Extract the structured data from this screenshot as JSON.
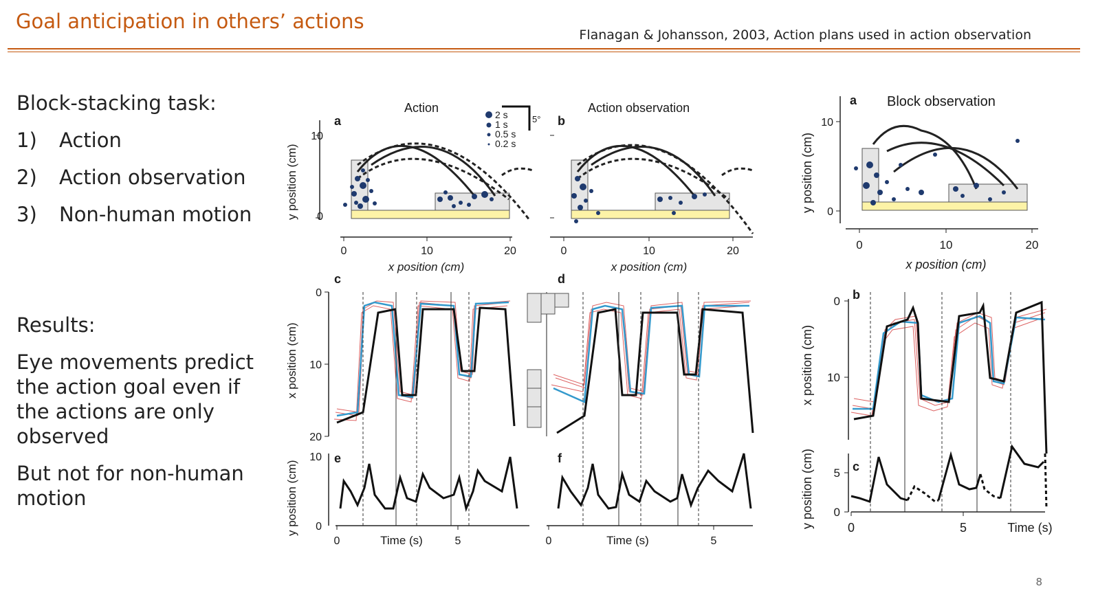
{
  "slide": {
    "title": "Goal anticipation in others’ actions",
    "citation": "Flanagan & Johansson, 2003, Action plans used in action observation",
    "page_number": "8"
  },
  "bullets": {
    "intro": "Block-stacking task:",
    "items": [
      {
        "num": "1)",
        "label": "Action"
      },
      {
        "num": "2)",
        "label": "Action observation"
      },
      {
        "num": "3)",
        "label": "Non-human motion"
      }
    ]
  },
  "results": {
    "heading": "Results:",
    "para1": "Eye movements predict the action goal even if the actions are only observed",
    "para2": "But not for non-human motion"
  },
  "figure": {
    "panel_a_letter": "a",
    "panel_a_title": "Action",
    "panel_b_letter": "b",
    "panel_b_title": "Action observation",
    "panel_c_letter": "c",
    "panel_d_letter": "d",
    "panel_e_letter": "e",
    "panel_f_letter": "f",
    "block_a_letter": "a",
    "block_title": "Block observation",
    "block_b_letter": "b",
    "block_c_letter": "c",
    "legend": [
      "2 s",
      "1 s",
      "0.5 s",
      "0.2 s"
    ],
    "scale_label": "5°",
    "y_position_label": "y position (cm)",
    "x_position_label": "x position (cm)",
    "time_label": "Time (s)",
    "ticks_xy": [
      "0",
      "10",
      "20"
    ],
    "ticks_y10": [
      "10",
      "0"
    ],
    "ticks_x_pos": [
      "0",
      "10",
      "20"
    ],
    "ticks_y_pos": [
      "10",
      "0"
    ],
    "ticks_time": [
      "0",
      "5"
    ],
    "block_ticks_x_pos": [
      "0",
      "10"
    ],
    "block_ticks_y_pos": [
      "5",
      "0"
    ]
  }
}
